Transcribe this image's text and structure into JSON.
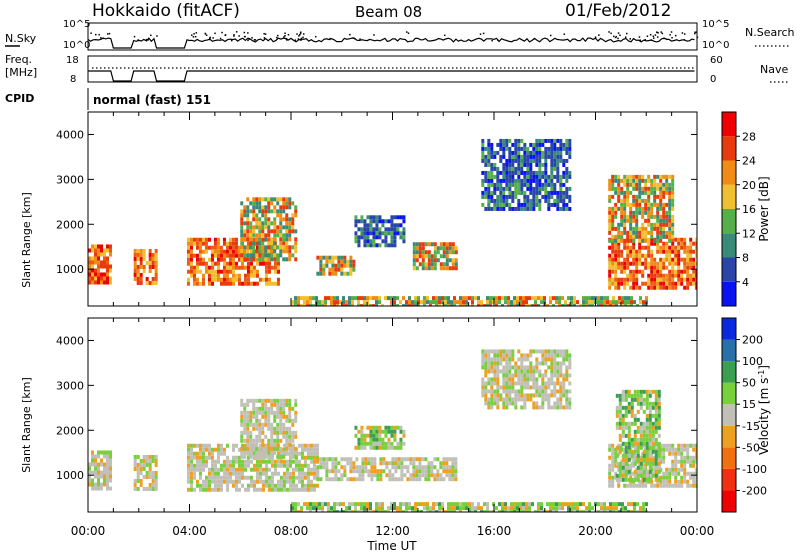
{
  "header": {
    "site": "Hokkaido (fitACF)",
    "beam": "Beam 08",
    "date": "01/Feb/2012"
  },
  "nsky_panel": {
    "left_label": "N.Sky",
    "right_label": "N.Search",
    "left_ticks": [
      "10^5",
      "10^0"
    ],
    "right_ticks": [
      "10^5",
      "10^0"
    ]
  },
  "freq_panel": {
    "left_label_1": "Freq.",
    "left_label_2": "[MHz]",
    "right_label": "Nave",
    "left_ticks": [
      "18",
      "8"
    ],
    "right_ticks": [
      "60",
      "0"
    ]
  },
  "cpid_panel": {
    "label": "CPID",
    "text": "normal (fast) 151"
  },
  "x_axis": {
    "label": "Time UT",
    "ticks": [
      "00:00",
      "04:00",
      "08:00",
      "12:00",
      "16:00",
      "20:00",
      "00:00"
    ]
  },
  "chart_data": [
    {
      "type": "heatmap",
      "title": "",
      "ylabel": "Slant Range [km]",
      "yticks": [
        1000,
        2000,
        3000,
        4000
      ],
      "ylim": [
        180,
        4500
      ],
      "xlim_hours": [
        0,
        24
      ],
      "colorbar": {
        "label": "Power [dB]",
        "ticks": [
          4,
          8,
          12,
          16,
          20,
          24,
          28
        ],
        "colors": [
          "#0a14f0",
          "#2a45a8",
          "#3a8a78",
          "#55b04a",
          "#f0c030",
          "#f08c14",
          "#e83a0c",
          "#f00000"
        ]
      },
      "gaps_hours": [
        [
          0.9,
          1.8
        ],
        [
          2.7,
          3.9
        ]
      ],
      "regions": [
        {
          "t0": 0,
          "t1": 0.9,
          "r0": 700,
          "r1": 1550,
          "level": "high"
        },
        {
          "t0": 1.8,
          "t1": 2.7,
          "r0": 700,
          "r1": 1450,
          "level": "high"
        },
        {
          "t0": 3.9,
          "t1": 7.5,
          "r0": 700,
          "r1": 1700,
          "level": "high"
        },
        {
          "t0": 6.0,
          "t1": 8.2,
          "r0": 1200,
          "r1": 2600,
          "level": "mid"
        },
        {
          "t0": 9.0,
          "t1": 10.5,
          "r0": 900,
          "r1": 1300,
          "level": "mid"
        },
        {
          "t0": 12.8,
          "t1": 14.5,
          "r0": 1050,
          "r1": 1600,
          "level": "mid"
        },
        {
          "t0": 10.5,
          "t1": 12.5,
          "r0": 1500,
          "r1": 2200,
          "level": "low"
        },
        {
          "t0": 15.5,
          "t1": 19.0,
          "r0": 2300,
          "r1": 3900,
          "level": "low"
        },
        {
          "t0": 20.5,
          "t1": 24,
          "r0": 600,
          "r1": 1700,
          "level": "high"
        },
        {
          "t0": 20.5,
          "t1": 23,
          "r0": 1600,
          "r1": 3100,
          "level": "mid"
        },
        {
          "t0": 8.0,
          "t1": 22.0,
          "r0": 200,
          "r1": 400,
          "level": "mid"
        }
      ]
    },
    {
      "type": "heatmap",
      "title": "",
      "ylabel": "Slant Range [km]",
      "yticks": [
        1000,
        2000,
        3000,
        4000
      ],
      "ylim": [
        180,
        4500
      ],
      "xlim_hours": [
        0,
        24
      ],
      "colorbar": {
        "label": "Velocity [m s^-1]",
        "ticks": [
          200,
          100,
          50,
          15,
          -15,
          -50,
          -100,
          -200
        ],
        "colors": [
          "#0a28e0",
          "#2a70a8",
          "#3aa050",
          "#78d03c",
          "#c0c0b8",
          "#f0a020",
          "#f07010",
          "#f03010",
          "#f00000"
        ]
      },
      "gaps_hours": [
        [
          0.9,
          1.8
        ],
        [
          2.7,
          3.9
        ]
      ],
      "regions": [
        {
          "t0": 0,
          "t1": 0.9,
          "r0": 700,
          "r1": 1550,
          "level": "grey"
        },
        {
          "t0": 1.8,
          "t1": 2.7,
          "r0": 700,
          "r1": 1450,
          "level": "grey"
        },
        {
          "t0": 3.9,
          "t1": 9.0,
          "r0": 700,
          "r1": 1700,
          "level": "grey"
        },
        {
          "t0": 6.0,
          "t1": 8.2,
          "r0": 1400,
          "r1": 2700,
          "level": "grey"
        },
        {
          "t0": 9.0,
          "t1": 14.5,
          "r0": 900,
          "r1": 1400,
          "level": "grey"
        },
        {
          "t0": 10.5,
          "t1": 12.5,
          "r0": 1600,
          "r1": 2100,
          "level": "green"
        },
        {
          "t0": 15.5,
          "t1": 19.0,
          "r0": 2500,
          "r1": 3800,
          "level": "grey"
        },
        {
          "t0": 20.5,
          "t1": 24,
          "r0": 800,
          "r1": 1700,
          "level": "grey"
        },
        {
          "t0": 20.8,
          "t1": 22.5,
          "r0": 900,
          "r1": 2900,
          "level": "green"
        },
        {
          "t0": 8.0,
          "t1": 22.0,
          "r0": 200,
          "r1": 400,
          "level": "green"
        }
      ]
    }
  ]
}
